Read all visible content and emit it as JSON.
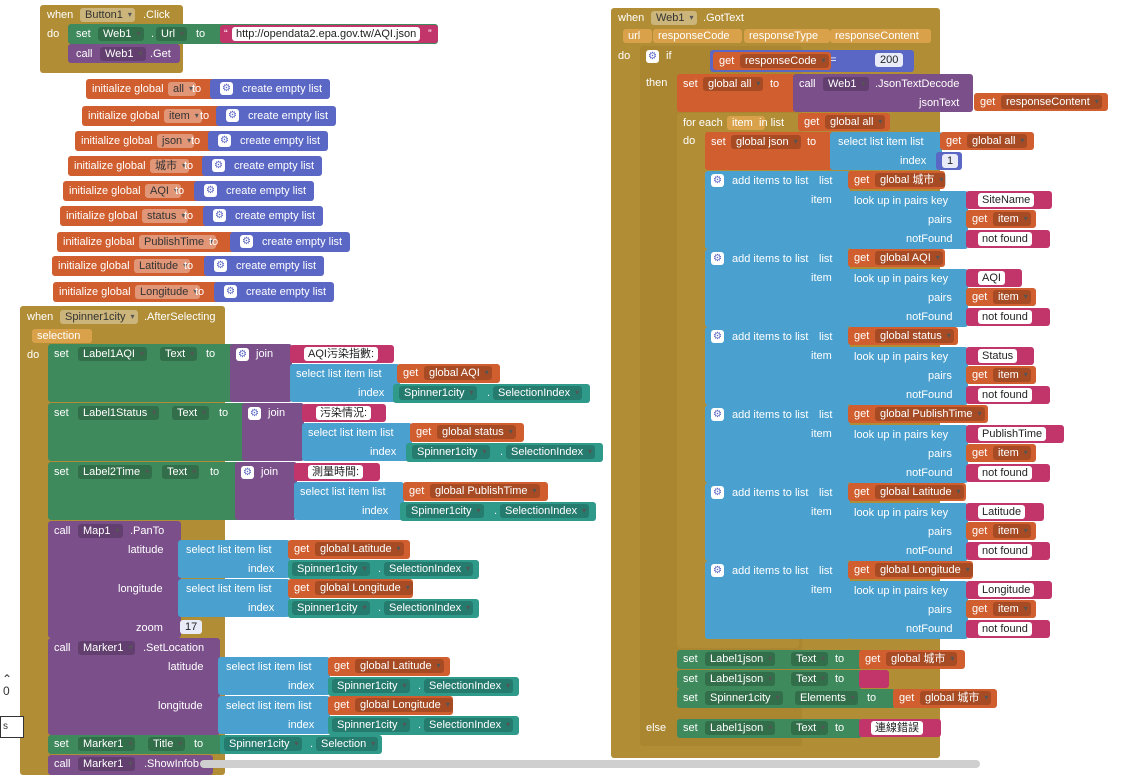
{
  "button_click": {
    "when": "when",
    "component": "Button1",
    "event": ".Click",
    "do": "do",
    "set": "set",
    "url_comp": "Web1",
    "url_prop": "Url",
    "to": "to",
    "url": "http://opendata2.epa.gov.tw/AQI.json",
    "call": "call",
    "web": "Web1",
    "get": ".Get"
  },
  "globals": [
    {
      "prefix": "initialize global",
      "name": "all",
      "to": "to",
      "list": "create empty list"
    },
    {
      "prefix": "initialize global",
      "name": "item",
      "to": "to",
      "list": "create empty list"
    },
    {
      "prefix": "initialize global",
      "name": "json",
      "to": "to",
      "list": "create empty list"
    },
    {
      "prefix": "initialize global",
      "name": "城市",
      "to": "to",
      "list": "create empty list"
    },
    {
      "prefix": "initialize global",
      "name": "AQI",
      "to": "to",
      "list": "create empty list"
    },
    {
      "prefix": "initialize global",
      "name": "status",
      "to": "to",
      "list": "create empty list"
    },
    {
      "prefix": "initialize global",
      "name": "PublishTime",
      "to": "to",
      "list": "create empty list"
    },
    {
      "prefix": "initialize global",
      "name": "Latitude",
      "to": "to",
      "list": "create empty list"
    },
    {
      "prefix": "initialize global",
      "name": "Longitude",
      "to": "to",
      "list": "create empty list"
    }
  ],
  "spinner": {
    "when": "when",
    "component": "Spinner1city",
    "event": ".AfterSelecting",
    "param": "selection",
    "do": "do",
    "set": "set",
    "text": "Text",
    "to": "to",
    "join": "join",
    "select": "select list item  list",
    "index": "index",
    "get": "get",
    "spin": "Spinner1city",
    "selidx": "SelectionIndex",
    "rows": [
      {
        "label": "Label1AQI",
        "str": "AQI污染指數:",
        "global": "global AQI"
      },
      {
        "label": "Label1Status",
        "str": "污染情況:",
        "global": "global status"
      },
      {
        "label": "Label2Time",
        "str": "測量時間:",
        "global": "global PublishTime"
      }
    ],
    "call": "call",
    "map": "Map1",
    "panto": ".PanTo",
    "latitude": "latitude",
    "longitude": "longitude",
    "zoom": "zoom",
    "zoom_val": "17",
    "glat": "global Latitude",
    "glon": "global Longitude",
    "marker": "Marker1",
    "setloc": ".SetLocation",
    "title": "Title",
    "selection": "Selection",
    "showinfo": ".ShowInfob"
  },
  "gottext": {
    "when": "when",
    "component": "Web1",
    "event": ".GotText",
    "p1": "url",
    "p2": "responseCode",
    "p3": "responseType",
    "p4": "responseContent",
    "do": "do",
    "if": "if",
    "get": "get",
    "rc": "responseCode",
    "eq": "=",
    "code": "200",
    "then": "then",
    "set": "set",
    "gall": "global all",
    "to": "to",
    "call": "call",
    "web": "Web1",
    "decode": ".JsonTextDecode",
    "jsontext": "jsonText",
    "rcontent": "responseContent",
    "foreach": "for each",
    "item": "item",
    "inlist": "in list",
    "gjson": "global json",
    "select": "select list item  list",
    "index": "index",
    "one": "1",
    "add": "add items to list",
    "list": "list",
    "itemlbl": "item",
    "lookup": "look up in pairs  key",
    "pairs": "pairs",
    "notfound": "notFound",
    "getitem": "item",
    "nf": "not found",
    "adds": [
      {
        "global": "global 城市",
        "key": "SiteName"
      },
      {
        "global": "global AQI",
        "key": "AQI"
      },
      {
        "global": "global status",
        "key": "Status"
      },
      {
        "global": "global PublishTime",
        "key": "PublishTime"
      },
      {
        "global": "global Latitude",
        "key": "Latitude"
      },
      {
        "global": "global Longitude",
        "key": "Longitude"
      }
    ],
    "label": "Label1json",
    "text": "Text",
    "gcity": "global 城市",
    "spin": "Spinner1city",
    "elements": "Elements",
    "else": "else",
    "err": "連線錯誤"
  },
  "fragment": {
    "num": "0",
    "s": "s"
  }
}
